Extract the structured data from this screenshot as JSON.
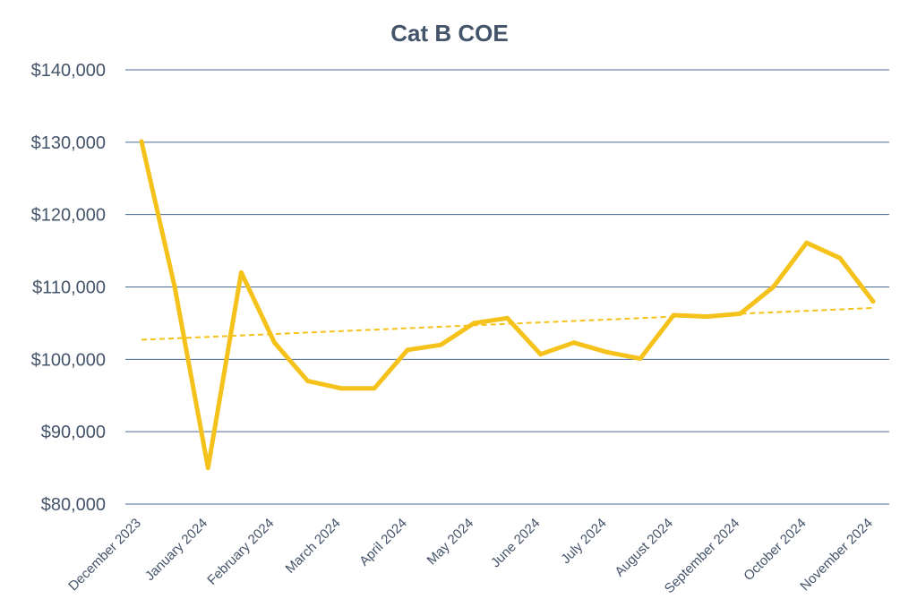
{
  "chart_data": {
    "type": "line",
    "title": "Cat B COE",
    "xlabel": "",
    "ylabel": "",
    "ylim": [
      80000,
      140000
    ],
    "yticks": [
      80000,
      90000,
      100000,
      110000,
      120000,
      130000,
      140000
    ],
    "ytick_labels": [
      "$80,000",
      "$90,000",
      "$100,000",
      "$110,000",
      "$120,000",
      "$130,000",
      "$140,000"
    ],
    "xtick_labels": [
      "December 2023",
      "January 2024",
      "February 2024",
      "March 2024",
      "April 2024",
      "May 2024",
      "June 2024",
      "July 2024",
      "August 2024",
      "September 2024",
      "October 2024",
      "November 2024"
    ],
    "x": [
      "December 2023",
      "",
      "January 2024",
      "",
      "February 2024",
      "",
      "March 2024",
      "",
      "April 2024",
      "",
      "May 2024",
      "",
      "June 2024",
      "",
      "July 2024",
      "",
      "August 2024",
      "",
      "September 2024",
      "",
      "October 2024",
      "",
      "November 2024"
    ],
    "values": [
      130100,
      110000,
      85000,
      112000,
      102300,
      97000,
      96000,
      96000,
      101300,
      102000,
      105000,
      105700,
      100700,
      102300,
      101000,
      100100,
      106100,
      105900,
      106300,
      110000,
      116100,
      114000,
      108000
    ],
    "trendline": {
      "style": "dashed",
      "values": [
        102700,
        107100
      ]
    },
    "grid": true,
    "legend": "none",
    "colors": {
      "series": "#f5c21b",
      "trend": "#f5c21b",
      "grid": "#4a6a9a",
      "text": "#44546a"
    }
  }
}
